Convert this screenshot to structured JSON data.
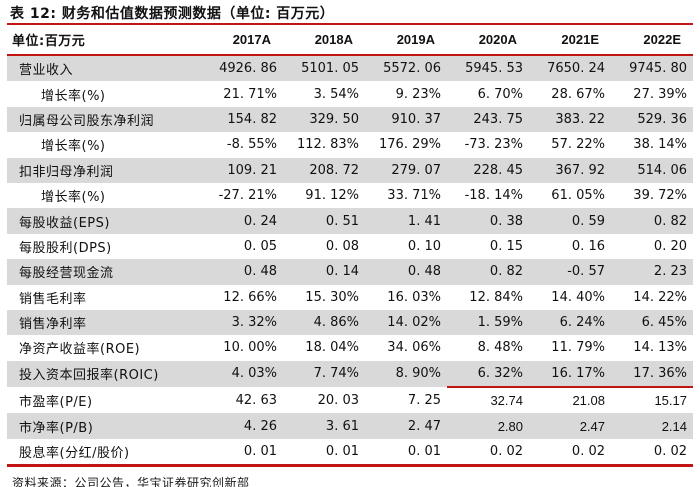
{
  "title": "表 12: 财务和估值数据预测数据（单位: 百万元）",
  "table": {
    "unit_label": "单位:百万元",
    "columns": [
      "2017A",
      "2018A",
      "2019A",
      "2020A",
      "2021E",
      "2022E"
    ],
    "rows": [
      {
        "label": "营业收入",
        "indent": false,
        "shaded": true,
        "values": [
          "4926. 86",
          "5101. 05",
          "5572. 06",
          "5945. 53",
          "7650. 24",
          "9745. 80"
        ]
      },
      {
        "label": "增长率(%)",
        "indent": true,
        "shaded": false,
        "values": [
          "21. 71%",
          "3. 54%",
          "9. 23%",
          "6. 70%",
          "28. 67%",
          "27. 39%"
        ]
      },
      {
        "label": "归属母公司股东净利润",
        "indent": false,
        "shaded": true,
        "values": [
          "154. 82",
          "329. 50",
          "910. 37",
          "243. 75",
          "383. 22",
          "529. 36"
        ]
      },
      {
        "label": "增长率(%)",
        "indent": true,
        "shaded": false,
        "values": [
          "-8. 55%",
          "112. 83%",
          "176. 29%",
          "-73. 23%",
          "57. 22%",
          "38. 14%"
        ]
      },
      {
        "label": "扣非归母净利润",
        "indent": false,
        "shaded": true,
        "values": [
          "109. 21",
          "208. 72",
          "279. 07",
          "228. 45",
          "367. 92",
          "514. 06"
        ]
      },
      {
        "label": "增长率(%)",
        "indent": true,
        "shaded": false,
        "values": [
          "-27. 21%",
          "91. 12%",
          "33. 71%",
          "-18. 14%",
          "61. 05%",
          "39. 72%"
        ]
      },
      {
        "label": "每股收益(EPS)",
        "indent": false,
        "shaded": true,
        "values": [
          "0. 24",
          "0. 51",
          "1. 41",
          "0. 38",
          "0. 59",
          "0. 82"
        ]
      },
      {
        "label": "每股股利(DPS)",
        "indent": false,
        "shaded": false,
        "values": [
          "0. 05",
          "0. 08",
          "0. 10",
          "0. 15",
          "0. 16",
          "0. 20"
        ]
      },
      {
        "label": "每股经营现金流",
        "indent": false,
        "shaded": true,
        "values": [
          "0. 48",
          "0. 14",
          "0. 48",
          "0. 82",
          "-0. 57",
          "2. 23"
        ]
      },
      {
        "label": "销售毛利率",
        "indent": false,
        "shaded": false,
        "values": [
          "12. 66%",
          "15. 30%",
          "16. 03%",
          "12. 84%",
          "14. 40%",
          "14. 22%"
        ]
      },
      {
        "label": "销售净利率",
        "indent": false,
        "shaded": true,
        "values": [
          "3. 32%",
          "4. 86%",
          "14. 02%",
          "1. 59%",
          "6. 24%",
          "6. 45%"
        ]
      },
      {
        "label": "净资产收益率(ROE)",
        "indent": false,
        "shaded": false,
        "values": [
          "10. 00%",
          "18. 04%",
          "34. 06%",
          "8. 48%",
          "11. 79%",
          "14. 13%"
        ]
      },
      {
        "label": "投入资本回报率(ROIC)",
        "indent": false,
        "shaded": true,
        "values": [
          "4. 03%",
          "7. 74%",
          "8. 90%",
          "6. 32%",
          "16. 17%",
          "17. 36%"
        ],
        "red_underline_from_col": 3
      },
      {
        "label": "市盈率(P/E)",
        "indent": false,
        "shaded": false,
        "values": [
          "42. 63",
          "20. 03",
          "7. 25",
          "32.74",
          "21.08",
          "15.17"
        ],
        "alt_font_from_col": 3
      },
      {
        "label": "市净率(P/B)",
        "indent": false,
        "shaded": true,
        "values": [
          "4. 26",
          "3. 61",
          "2. 47",
          "2.80",
          "2.47",
          "2.14"
        ],
        "alt_font_from_col": 3
      },
      {
        "label": "股息率(分红/股价)",
        "indent": false,
        "shaded": false,
        "values": [
          "0. 01",
          "0. 01",
          "0. 01",
          "0. 02",
          "0. 02",
          "0. 02"
        ]
      }
    ]
  },
  "footer": {
    "source": "资料来源：公司公告，华宝证券研究创新部"
  },
  "colors": {
    "accent_red": "#c31414",
    "row_shade": "#d9d9d9",
    "text": "#111111"
  }
}
